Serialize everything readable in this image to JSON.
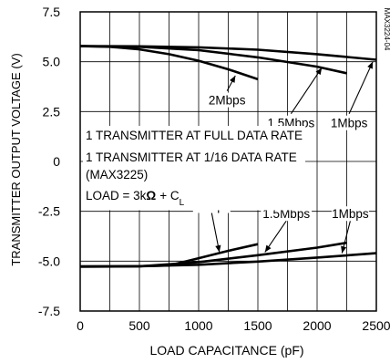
{
  "chart_data": {
    "type": "line",
    "title": "",
    "watermark": "MAX3224-04",
    "xlabel": "LOAD CAPACITANCE (pF)",
    "ylabel": "TRANSMITTER OUTPUT VOLTAGE (V)",
    "xlim": [
      0,
      2500
    ],
    "ylim": [
      -7.5,
      7.5
    ],
    "x_ticks": [
      0,
      500,
      1000,
      1500,
      2000,
      2500
    ],
    "x_tick_labels": [
      "0",
      "500",
      "1000",
      "1500",
      "2000",
      "2500"
    ],
    "y_ticks": [
      7.5,
      5.0,
      2.5,
      0,
      -2.5,
      -5.0,
      -7.5
    ],
    "y_tick_labels": [
      "7.5",
      "5.0",
      "2.5",
      "0",
      "-2.5",
      "-5.0",
      "-7.5"
    ],
    "grid": true,
    "series": [
      {
        "name": "2Mbps",
        "x": [
          0,
          250,
          500,
          750,
          1000,
          1250,
          1500
        ],
        "y": [
          5.78,
          5.75,
          5.62,
          5.38,
          5.05,
          4.62,
          4.12
        ]
      },
      {
        "name": "1.5Mbps",
        "x": [
          0,
          500,
          1000,
          1500,
          2000,
          2250
        ],
        "y": [
          5.78,
          5.75,
          5.58,
          5.22,
          4.75,
          4.42
        ]
      },
      {
        "name": "1Mbps",
        "x": [
          0,
          500,
          1000,
          1500,
          2000,
          2500
        ],
        "y": [
          5.78,
          5.77,
          5.72,
          5.6,
          5.38,
          5.1
        ]
      },
      {
        "name": "2Mbps",
        "x": [
          0,
          500,
          750,
          1000,
          1250,
          1500
        ],
        "y": [
          -5.28,
          -5.26,
          -5.22,
          -4.85,
          -4.48,
          -4.15
        ]
      },
      {
        "name": "1.5Mbps",
        "x": [
          0,
          500,
          1000,
          1500,
          2000,
          2250
        ],
        "y": [
          -5.27,
          -5.26,
          -5.05,
          -4.7,
          -4.32,
          -4.08
        ]
      },
      {
        "name": "1Mbps",
        "x": [
          0,
          500,
          1000,
          1500,
          2000,
          2500
        ],
        "y": [
          -5.26,
          -5.25,
          -5.18,
          -5.02,
          -4.82,
          -4.6
        ]
      }
    ],
    "annotations": [
      {
        "text": "2Mbps",
        "x": 1240,
        "y": 2.9,
        "arrow_to": [
          1310,
          4.3
        ]
      },
      {
        "text": "1.5Mbps",
        "x": 1780,
        "y": 1.75,
        "arrow_to": [
          2040,
          4.7
        ]
      },
      {
        "text": "1Mbps",
        "x": 2270,
        "y": 1.75,
        "arrow_to": [
          2470,
          5.0
        ]
      },
      {
        "text": "2Mbps",
        "x": 1110,
        "y": -2.4,
        "arrow_to": [
          1175,
          -4.55
        ]
      },
      {
        "text": "1.5Mbps",
        "x": 1740,
        "y": -2.8,
        "arrow_to": [
          1560,
          -4.55
        ]
      },
      {
        "text": "1Mbps",
        "x": 2280,
        "y": -2.8,
        "arrow_to": [
          2210,
          -4.6
        ]
      }
    ],
    "conditions": {
      "line1": "1 TRANSMITTER AT FULL DATA RATE",
      "line2": "1 TRANSMITTER AT 1/16 DATA RATE",
      "line3": "(MAX3225)",
      "load_prefix": "LOAD = 3k",
      "ohm": "Ω",
      "plus": "+ C",
      "sub": "L"
    }
  }
}
